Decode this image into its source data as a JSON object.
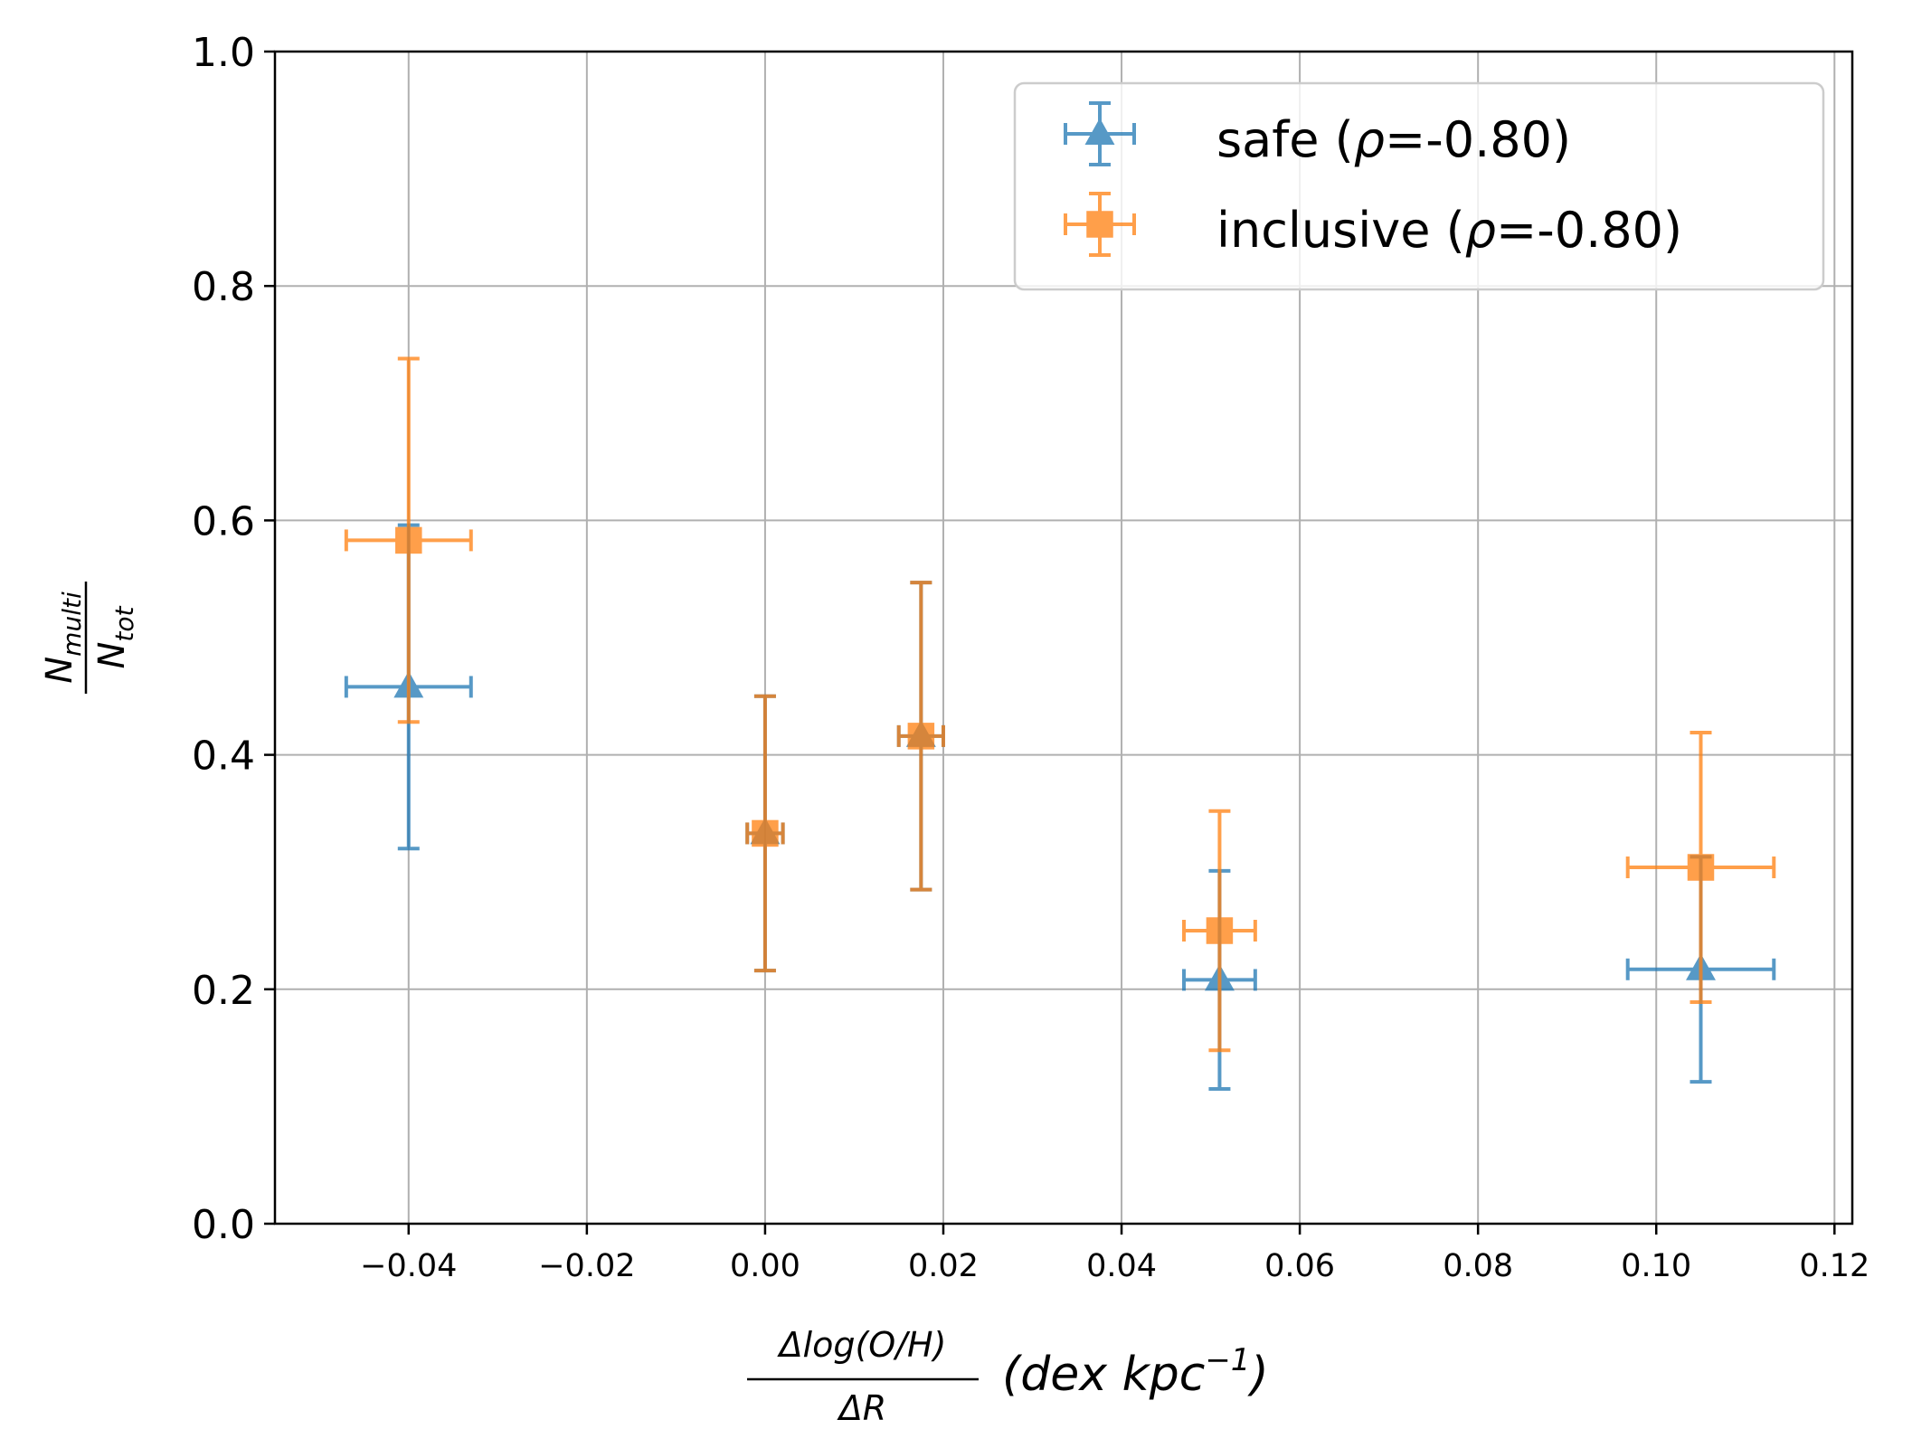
{
  "chart_data": {
    "type": "scatter",
    "title": "",
    "xlabel": {
      "frac_numerator": "Δlog(O/H)",
      "frac_denominator": "ΔR",
      "units_prefix": "(dex kpc",
      "units_exponent": "−1",
      "units_suffix": ")"
    },
    "ylabel": {
      "numerator_main": "N",
      "numerator_sub": "multi",
      "denominator_main": "N",
      "denominator_sub": "tot"
    },
    "xlim": [
      -0.055,
      0.122
    ],
    "ylim": [
      0.0,
      1.0
    ],
    "xticks": [
      -0.04,
      -0.02,
      0.0,
      0.02,
      0.04,
      0.06,
      0.08,
      0.1,
      0.12
    ],
    "xtick_labels": [
      "−0.04",
      "−0.02",
      "0.00",
      "0.02",
      "0.04",
      "0.06",
      "0.08",
      "0.10",
      "0.12"
    ],
    "yticks": [
      0.0,
      0.2,
      0.4,
      0.6,
      0.8,
      1.0
    ],
    "ytick_labels": [
      "0.0",
      "0.2",
      "0.4",
      "0.6",
      "0.8",
      "1.0"
    ],
    "grid": true,
    "legend_position": "top-right",
    "series": [
      {
        "name": "safe",
        "legend_label": "safe (ρ=-0.80)",
        "legend_prefix": "safe (",
        "legend_rho": "ρ",
        "legend_suffix": "=-0.80)",
        "color": "#1f77b4",
        "marker": "triangle",
        "points": [
          {
            "x": -0.04,
            "y": 0.458,
            "xerr": [
              0.007,
              0.007
            ],
            "yerr": [
              0.138,
              0.138
            ]
          },
          {
            "x": 0.0,
            "y": 0.333,
            "xerr": [
              0.002,
              0.002
            ],
            "yerr": [
              0.117,
              0.117
            ]
          },
          {
            "x": 0.0175,
            "y": 0.416,
            "xerr": [
              0.0025,
              0.0025
            ],
            "yerr": [
              0.131,
              0.131
            ]
          },
          {
            "x": 0.051,
            "y": 0.208,
            "xerr": [
              0.004,
              0.004
            ],
            "yerr": [
              0.093,
              0.093
            ]
          },
          {
            "x": 0.105,
            "y": 0.217,
            "xerr": [
              0.0082,
              0.0082
            ],
            "yerr": [
              0.096,
              0.096
            ]
          }
        ]
      },
      {
        "name": "inclusive",
        "legend_label": "inclusive (ρ=-0.80)",
        "legend_prefix": "inclusive (",
        "legend_rho": "ρ",
        "legend_suffix": "=-0.80)",
        "color": "#ff7f0e",
        "marker": "square",
        "points": [
          {
            "x": -0.04,
            "y": 0.583,
            "xerr": [
              0.007,
              0.007
            ],
            "yerr": [
              0.155,
              0.155
            ]
          },
          {
            "x": 0.0,
            "y": 0.333,
            "xerr": [
              0.002,
              0.002
            ],
            "yerr": [
              0.117,
              0.117
            ]
          },
          {
            "x": 0.0175,
            "y": 0.416,
            "xerr": [
              0.0025,
              0.0025
            ],
            "yerr": [
              0.131,
              0.131
            ]
          },
          {
            "x": 0.051,
            "y": 0.25,
            "xerr": [
              0.004,
              0.004
            ],
            "yerr": [
              0.102,
              0.102
            ]
          },
          {
            "x": 0.105,
            "y": 0.304,
            "xerr": [
              0.0082,
              0.0082
            ],
            "yerr": [
              0.115,
              0.115
            ]
          }
        ]
      }
    ]
  }
}
